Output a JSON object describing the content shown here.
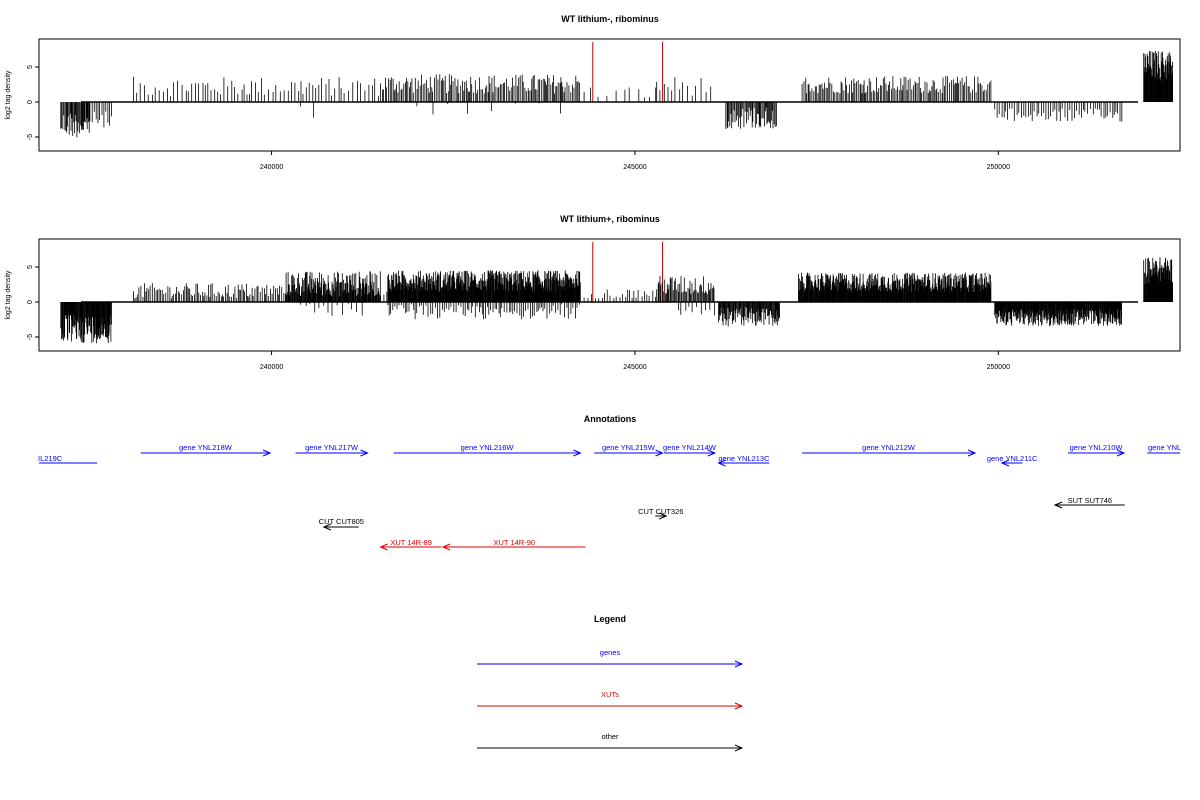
{
  "chart_data": [
    {
      "type": "bar",
      "title": "WT lithium-, ribominus",
      "xlabel": "",
      "ylabel": "log2 tag density",
      "xlim": [
        236800,
        252500
      ],
      "ylim": [
        -7,
        9
      ],
      "x_ticks": [
        240000,
        245000,
        250000
      ],
      "y_ticks": [
        -5,
        0,
        5
      ],
      "reference_lines": [
        244420,
        245380
      ],
      "reference_color": "#cc0000",
      "bar_color": "#000000",
      "segments": [
        {
          "from": 237100,
          "to": 237500,
          "sign": -1,
          "mean": 3.2,
          "var": 1.4,
          "step": 12
        },
        {
          "from": 237500,
          "to": 237800,
          "sign": -1,
          "mean": 2.6,
          "var": 0.9,
          "step": 25
        },
        {
          "from": 238100,
          "to": 241500,
          "sign": 1,
          "mean": 2.2,
          "var": 1.0,
          "step": 45
        },
        {
          "from": 240400,
          "to": 240700,
          "sign": -1,
          "mean": 1.4,
          "var": 1.3,
          "step": 140
        },
        {
          "from": 241500,
          "to": 244250,
          "sign": 1,
          "mean": 2.6,
          "var": 1.0,
          "step": 20
        },
        {
          "from": 242000,
          "to": 244000,
          "sign": -1,
          "mean": 1.0,
          "var": 0.8,
          "step": 260
        },
        {
          "from": 244300,
          "to": 245300,
          "sign": 1,
          "mean": 1.3,
          "var": 0.7,
          "step": 95
        },
        {
          "from": 245300,
          "to": 246050,
          "sign": 1,
          "mean": 2.3,
          "var": 1.0,
          "step": 55
        },
        {
          "from": 246250,
          "to": 246950,
          "sign": -1,
          "mean": 2.2,
          "var": 1.2,
          "step": 14
        },
        {
          "from": 247300,
          "to": 249900,
          "sign": 1,
          "mean": 2.5,
          "var": 0.9,
          "step": 20
        },
        {
          "from": 249950,
          "to": 251700,
          "sign": -1,
          "mean": 1.9,
          "var": 0.7,
          "step": 30
        },
        {
          "from": 252000,
          "to": 252400,
          "sign": 1,
          "mean": 5.2,
          "var": 1.6,
          "step": 6
        }
      ]
    },
    {
      "type": "bar",
      "title": "WT lithium+, ribominus",
      "xlabel": "",
      "ylabel": "log2 tag density",
      "xlim": [
        236800,
        252500
      ],
      "ylim": [
        -7,
        9
      ],
      "x_ticks": [
        240000,
        245000,
        250000
      ],
      "y_ticks": [
        -5,
        0,
        5
      ],
      "reference_lines": [
        244420,
        245380
      ],
      "reference_color": "#cc0000",
      "bar_color": "#000000",
      "segments": [
        {
          "from": 237100,
          "to": 237800,
          "sign": -1,
          "mean": 3.8,
          "var": 1.5,
          "step": 7
        },
        {
          "from": 238100,
          "to": 240200,
          "sign": 1,
          "mean": 1.6,
          "var": 0.8,
          "step": 22
        },
        {
          "from": 240200,
          "to": 241500,
          "sign": 1,
          "mean": 2.6,
          "var": 1.3,
          "step": 8
        },
        {
          "from": 240400,
          "to": 241300,
          "sign": -1,
          "mean": 1.2,
          "var": 0.7,
          "step": 60
        },
        {
          "from": 241500,
          "to": 241600,
          "sign": 1,
          "mean": 1.0,
          "var": 0.6,
          "step": 40
        },
        {
          "from": 241600,
          "to": 244250,
          "sign": 1,
          "mean": 3.0,
          "var": 1.1,
          "step": 6
        },
        {
          "from": 241600,
          "to": 244250,
          "sign": -1,
          "mean": 1.4,
          "var": 0.8,
          "step": 28
        },
        {
          "from": 244300,
          "to": 245300,
          "sign": 1,
          "mean": 1.2,
          "var": 0.5,
          "step": 40
        },
        {
          "from": 245300,
          "to": 246100,
          "sign": 1,
          "mean": 2.4,
          "var": 1.0,
          "step": 14
        },
        {
          "from": 245600,
          "to": 246100,
          "sign": -1,
          "mean": 1.4,
          "var": 0.8,
          "step": 50
        },
        {
          "from": 246150,
          "to": 247000,
          "sign": -1,
          "mean": 2.1,
          "var": 1.0,
          "step": 9
        },
        {
          "from": 247250,
          "to": 249900,
          "sign": 1,
          "mean": 2.8,
          "var": 1.0,
          "step": 6
        },
        {
          "from": 249950,
          "to": 251700,
          "sign": -1,
          "mean": 2.2,
          "var": 0.9,
          "step": 6
        },
        {
          "from": 252000,
          "to": 252400,
          "sign": 1,
          "mean": 4.5,
          "var": 1.4,
          "step": 5
        }
      ]
    }
  ],
  "annotations": {
    "title": "Annotations",
    "items": [
      {
        "label": "IL219C",
        "x1": 236800,
        "x2": 237600,
        "row": 1,
        "dir": "none",
        "color": "#0000ff"
      },
      {
        "label": "gene YNL218W",
        "x1": 238200,
        "x2": 239980,
        "row": 0,
        "dir": "right",
        "color": "#0000ff"
      },
      {
        "label": "gene YNL217W",
        "x1": 240330,
        "x2": 241320,
        "row": 0,
        "dir": "right",
        "color": "#0000ff"
      },
      {
        "label": "gene YNL216W",
        "x1": 241680,
        "x2": 244250,
        "row": 0,
        "dir": "right",
        "color": "#0000ff"
      },
      {
        "label": "gene YNL215W",
        "x1": 244440,
        "x2": 245380,
        "row": 0,
        "dir": "right",
        "color": "#0000ff"
      },
      {
        "label": "gene YNL214W",
        "x1": 245400,
        "x2": 246100,
        "row": 0,
        "dir": "right",
        "color": "#0000ff"
      },
      {
        "label": "gene YNL213C",
        "x1": 246150,
        "x2": 246850,
        "row": 1,
        "dir": "left",
        "color": "#0000ff"
      },
      {
        "label": "gene YNL212W",
        "x1": 247300,
        "x2": 249680,
        "row": 0,
        "dir": "right",
        "color": "#0000ff"
      },
      {
        "label": "gene YNL211C",
        "x1": 250050,
        "x2": 250330,
        "row": 1,
        "dir": "left",
        "color": "#0000ff"
      },
      {
        "label": "gene YNL210W",
        "x1": 250960,
        "x2": 251730,
        "row": 0,
        "dir": "right",
        "color": "#0000ff"
      },
      {
        "label": "gene YNL",
        "x1": 252050,
        "x2": 252500,
        "row": 0,
        "dir": "none",
        "color": "#0000ff"
      },
      {
        "label": "SUT SUT746",
        "x1": 250780,
        "x2": 251740,
        "row": 2,
        "dir": "left",
        "color": "#000000"
      },
      {
        "label": "CUT CUT326",
        "x1": 245280,
        "x2": 245430,
        "row": 3,
        "dir": "right",
        "color": "#000000"
      },
      {
        "label": "CUT CUT805",
        "x1": 240720,
        "x2": 241200,
        "row": 4,
        "dir": "left",
        "color": "#000000"
      },
      {
        "label": "XUT 14R-89",
        "x1": 241500,
        "x2": 242340,
        "row": 5,
        "dir": "left",
        "color": "#dd0000"
      },
      {
        "label": "XUT 14R-90",
        "x1": 242360,
        "x2": 244320,
        "row": 5,
        "dir": "left",
        "color": "#dd0000"
      }
    ]
  },
  "legend": {
    "title": "Legend",
    "items": [
      {
        "label": "genes",
        "color": "#0000ff"
      },
      {
        "label": "XUTs",
        "color": "#dd0000"
      },
      {
        "label": "other",
        "color": "#000000"
      }
    ]
  }
}
